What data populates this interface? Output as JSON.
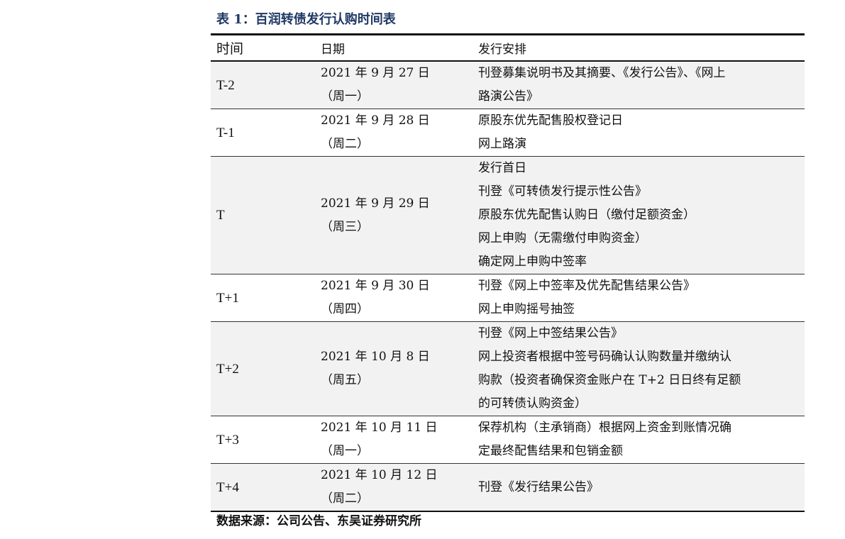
{
  "title": "表 1：百润转债发行认购时间表",
  "headers": [
    "时间",
    "日期",
    "发行安排"
  ],
  "rows": [
    {
      "time": "T-2",
      "date": [
        "2021 年 9 月 27 日",
        "（周一）"
      ],
      "plan": [
        "刊登募集说明书及其摘要、《发行公告》、《网上",
        "路演公告》"
      ]
    },
    {
      "time": "T-1",
      "date": [
        "2021 年 9 月 28 日",
        "（周二）"
      ],
      "plan": [
        "原股东优先配售股权登记日",
        "网上路演"
      ]
    },
    {
      "time": "T",
      "date": [
        "2021 年 9 月 29 日",
        "（周三）"
      ],
      "plan": [
        "发行首日",
        "刊登《可转债发行提示性公告》",
        "原股东优先配售认购日（缴付足额资金）",
        "网上申购（无需缴付申购资金）",
        "确定网上申购中签率"
      ]
    },
    {
      "time": "T+1",
      "date": [
        "2021 年 9 月 30 日",
        "（周四）"
      ],
      "plan": [
        "刊登《网上中签率及优先配售结果公告》",
        "网上申购摇号抽签"
      ]
    },
    {
      "time": "T+2",
      "date": [
        "2021 年 10 月 8 日",
        "（周五）"
      ],
      "plan": [
        "刊登《网上中签结果公告》",
        "网上投资者根据中签号码确认认购数量并缴纳认",
        "购款（投资者确保资金账户在 T+2 日日终有足额",
        "的可转债认购资金）"
      ]
    },
    {
      "time": "T+3",
      "date": [
        "2021 年 10 月 11 日",
        "（周一）"
      ],
      "plan": [
        "保荐机构（主承销商）根据网上资金到账情况确",
        "定最终配售结果和包销金额"
      ]
    },
    {
      "time": "T+4",
      "date": [
        "2021 年 10 月 12 日",
        "（周二）"
      ],
      "plan": [
        "刊登《发行结果公告》"
      ]
    }
  ],
  "source": "数据来源：公司公告、东吴证券研究所",
  "colors": {
    "title": "#1f3864",
    "row_shade": "#f2f2f2"
  }
}
